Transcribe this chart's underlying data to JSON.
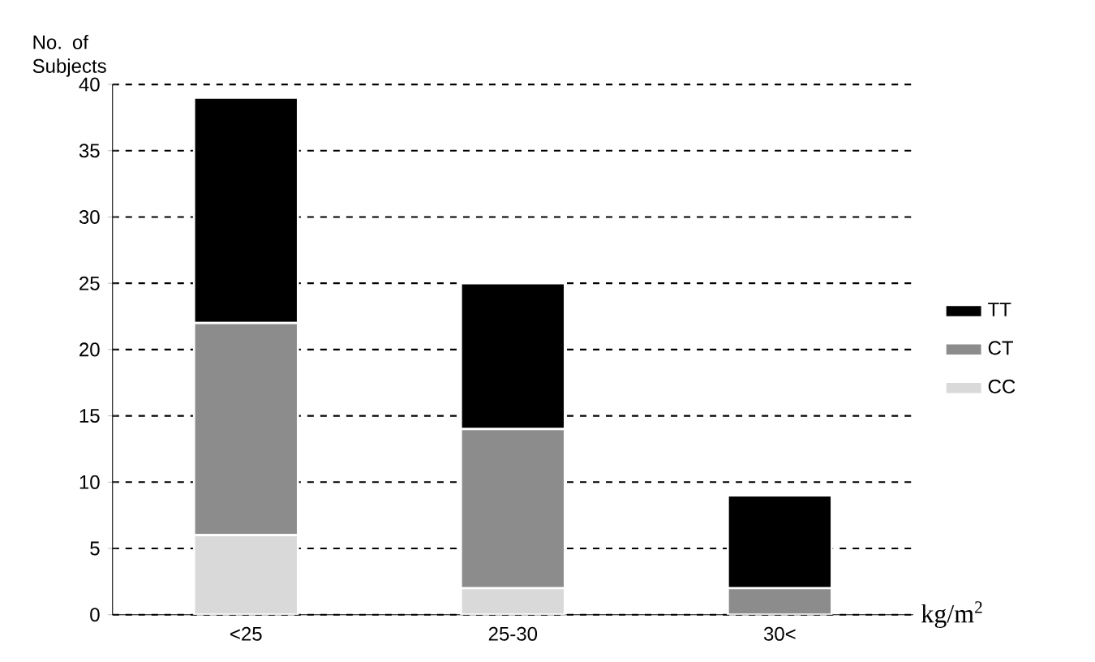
{
  "chart_data": {
    "type": "bar",
    "stacked": true,
    "categories": [
      "<25",
      "25-30",
      "30<"
    ],
    "series": [
      {
        "name": "CC",
        "color": "#d9d9d9",
        "values": [
          6,
          2,
          0
        ]
      },
      {
        "name": "CT",
        "color": "#8c8c8c",
        "values": [
          16,
          12,
          2
        ]
      },
      {
        "name": "TT",
        "color": "#000000",
        "values": [
          17,
          11,
          7
        ]
      }
    ],
    "ylabel": "No. of Subjects",
    "xlabel": "kg/m$^{2}$",
    "ylim": [
      0,
      40
    ],
    "yticks": [
      0,
      5,
      10,
      15,
      20,
      25,
      30,
      35,
      40
    ],
    "grid": "y",
    "legend": "right"
  }
}
